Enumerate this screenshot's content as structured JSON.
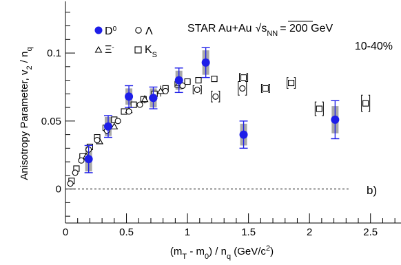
{
  "chart_data": {
    "type": "scatter",
    "panel_label": "b)",
    "annotation": {
      "experiment": "STAR Au+Au",
      "energy_prefix": "√s",
      "energy_sub": "NN",
      "energy_value": "= 200 GeV",
      "centrality": "10-40%"
    },
    "xlabel": {
      "p1": "(m",
      "s1": "T",
      "p2": " - m",
      "s2": "0",
      "p3": ") / n",
      "s3": "q",
      "p4": " (GeV/c",
      "sup": "2",
      "p5": ")"
    },
    "ylabel": {
      "p1": "Anisotropy Parameter, v",
      "s1": "2",
      "p2": " / n",
      "s2": "q"
    },
    "xlim": [
      0,
      2.75
    ],
    "ylim": [
      -0.025,
      0.138
    ],
    "xticks": [
      0,
      0.5,
      1,
      1.5,
      2,
      2.5
    ],
    "xtick_labels": [
      "0",
      "0.5",
      "1",
      "1.5",
      "2",
      "2.5"
    ],
    "yticks": [
      0,
      0.05,
      0.1
    ],
    "ytick_labels": [
      "0",
      "0.05",
      "0.1"
    ],
    "zero_line": {
      "x_end": 2.32
    },
    "legend": [
      {
        "name": "D",
        "sup": "0",
        "marker": "filled-circle",
        "color": "#1e1ee8"
      },
      {
        "name": "Λ",
        "sup": "",
        "marker": "open-circle",
        "color": "#000000"
      },
      {
        "name": "Ξ",
        "sup": "-",
        "marker": "open-triangle",
        "color": "#000000"
      },
      {
        "name": "K",
        "sub": "S",
        "marker": "open-square",
        "color": "#000000"
      }
    ],
    "series": [
      {
        "name": "D0",
        "marker": "filled-circle",
        "color": "#1e1ee8",
        "sys_color": "#a9a9a9",
        "x": [
          0.19,
          0.35,
          0.52,
          0.72,
          0.93,
          1.15,
          1.46,
          2.21
        ],
        "y": [
          0.022,
          0.046,
          0.068,
          0.067,
          0.08,
          0.093,
          0.04,
          0.051
        ],
        "stat_err": [
          0.01,
          0.008,
          0.008,
          0.008,
          0.009,
          0.011,
          0.01,
          0.014
        ],
        "sys_err": [
          0.009,
          0.007,
          0.006,
          0.007,
          0.007,
          0.009,
          0.008,
          0.01
        ]
      },
      {
        "name": "Lambda",
        "marker": "open-circle",
        "color": "#000000",
        "x": [
          0.04,
          0.08,
          0.13,
          0.19,
          0.26,
          0.34,
          0.43,
          0.52,
          0.61,
          0.71,
          0.82,
          0.96,
          1.08,
          1.23,
          1.45
        ],
        "y": [
          0.004,
          0.012,
          0.021,
          0.029,
          0.036,
          0.043,
          0.05,
          0.057,
          0.062,
          0.067,
          0.072,
          0.076,
          0.073,
          0.068,
          0.074
        ],
        "stat_err": [
          0.001,
          0.001,
          0.001,
          0.001,
          0.001,
          0.001,
          0.001,
          0.001,
          0.001,
          0.001,
          0.002,
          0.002,
          0.003,
          0.004,
          0.005
        ]
      },
      {
        "name": "Xi",
        "marker": "open-triangle",
        "color": "#000000",
        "x": [
          0.17,
          0.28,
          0.4,
          0.52,
          0.65,
          0.78,
          0.93
        ],
        "y": [
          0.024,
          0.035,
          0.046,
          0.058,
          0.066,
          0.072,
          0.078
        ],
        "stat_err": [
          0.002,
          0.002,
          0.002,
          0.003,
          0.003,
          0.004,
          0.005
        ]
      },
      {
        "name": "KS",
        "marker": "open-square",
        "color": "#000000",
        "x": [
          0.05,
          0.09,
          0.14,
          0.2,
          0.26,
          0.33,
          0.4,
          0.48,
          0.56,
          0.64,
          0.73,
          0.82,
          0.92,
          1.0,
          1.09,
          1.22,
          1.46,
          1.64,
          1.85,
          2.08,
          2.46
        ],
        "y": [
          0.006,
          0.015,
          0.024,
          0.031,
          0.038,
          0.045,
          0.051,
          0.057,
          0.062,
          0.066,
          0.07,
          0.074,
          0.077,
          0.079,
          0.08,
          0.081,
          0.082,
          0.074,
          0.078,
          0.059,
          0.063
        ],
        "stat_err": [
          0.001,
          0.001,
          0.001,
          0.001,
          0.001,
          0.001,
          0.001,
          0.001,
          0.001,
          0.001,
          0.001,
          0.001,
          0.001,
          0.001,
          0.002,
          0.002,
          0.003,
          0.003,
          0.004,
          0.005,
          0.006
        ]
      }
    ]
  }
}
